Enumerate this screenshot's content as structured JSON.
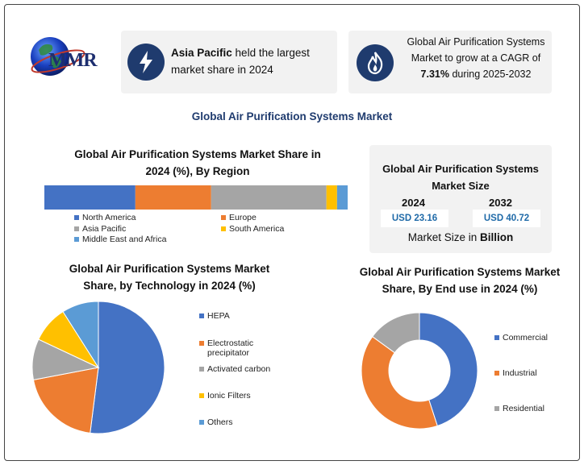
{
  "logo": {
    "text": "MMR"
  },
  "cards": {
    "left": {
      "bold": "Asia Pacific",
      "rest1": " held the largest",
      "rest2": "market share in 2024",
      "icon": "lightning-icon"
    },
    "right": {
      "line1": "Global Air Purification Systems",
      "line2": "Market to grow at a CAGR of",
      "bold": "7.31%",
      "line3rest": " during 2025-2032",
      "icon": "flame-icon"
    }
  },
  "main_title": "Global Air Purification Systems Market",
  "market_size": {
    "title_line1": "Global Air Purification Systems",
    "title_line2": "Market Size",
    "year1": "2024",
    "value1": "USD 23.16",
    "year2": "2032",
    "value2": "USD 40.72",
    "footer_prefix": "Market Size in ",
    "footer_bold": "Billion"
  },
  "colors": {
    "blue": "#4472c4",
    "orange": "#ed7d31",
    "gray": "#a5a5a5",
    "yellow": "#ffc000",
    "lightblue": "#5b9bd5"
  },
  "chart_data": [
    {
      "type": "bar",
      "orientation": "horizontal-stacked",
      "title_line1": "Global Air Purification Systems Market Share in",
      "title_line2": "2024 (%), By Region",
      "categories": [
        "North America",
        "Europe",
        "Asia Pacific",
        "South America",
        "Middle East and Africa"
      ],
      "values": [
        30,
        25,
        38,
        3.5,
        3.5
      ]
    },
    {
      "type": "pie",
      "title_line1": "Global Air Purification Systems Market",
      "title_line2": "Share, by Technology in 2024 (%)",
      "categories": [
        "HEPA",
        "Electrostatic precipitator",
        "Activated carbon",
        "Ionic Filters",
        "Others"
      ],
      "values": [
        52,
        20,
        10,
        9,
        9
      ]
    },
    {
      "type": "pie",
      "style": "donut",
      "title_line1": "Global Air Purification Systems Market",
      "title_line2": "Share, By End use in 2024 (%)",
      "categories": [
        "Commercial",
        "Industrial",
        "Residential"
      ],
      "values": [
        45,
        40,
        15
      ]
    }
  ]
}
